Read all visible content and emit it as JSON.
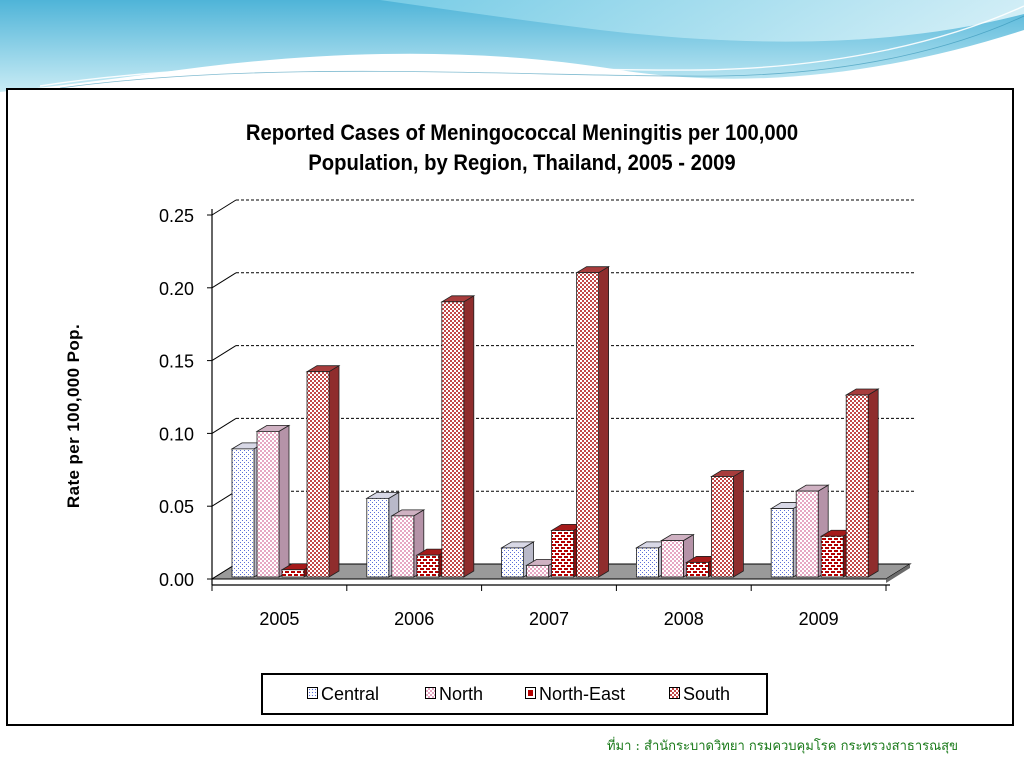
{
  "slide": {
    "source_note": "ที่มา : สำนักระบาดวิทยา กรมควบคุมโรค กระทรวงสาธารณสุข"
  },
  "chart_data": {
    "type": "bar",
    "style": "3d-clustered-column",
    "title_lines": [
      "Reported Cases of  Meningococcal  Meningitis  per 100,000",
      "Population, by Region, Thailand, 2005  - 2009"
    ],
    "xlabel": "",
    "ylabel": "Rate per 100,000 Pop.",
    "categories": [
      "2005",
      "2006",
      "2007",
      "2008",
      "2009"
    ],
    "ylim": [
      0,
      0.25
    ],
    "yticks": [
      "0.00",
      "0.05",
      "0.10",
      "0.15",
      "0.20",
      "0.25"
    ],
    "grid": true,
    "legend_position": "bottom",
    "series": [
      {
        "name": "Central",
        "values": [
          0.088,
          0.054,
          0.02,
          0.02,
          0.047
        ],
        "color": "#ffffff",
        "pattern": "dots-blue"
      },
      {
        "name": "North",
        "values": [
          0.1,
          0.042,
          0.008,
          0.025,
          0.059
        ],
        "color": "#f4d2e0",
        "pattern": "checks-pink"
      },
      {
        "name": "North-East",
        "values": [
          0.005,
          0.015,
          0.032,
          0.01,
          0.028
        ],
        "color": "#b40000",
        "pattern": "bricks-red"
      },
      {
        "name": "South",
        "values": [
          0.141,
          0.189,
          0.209,
          0.069,
          0.125
        ],
        "color": "#c85a5a",
        "pattern": "checks-red"
      }
    ]
  }
}
